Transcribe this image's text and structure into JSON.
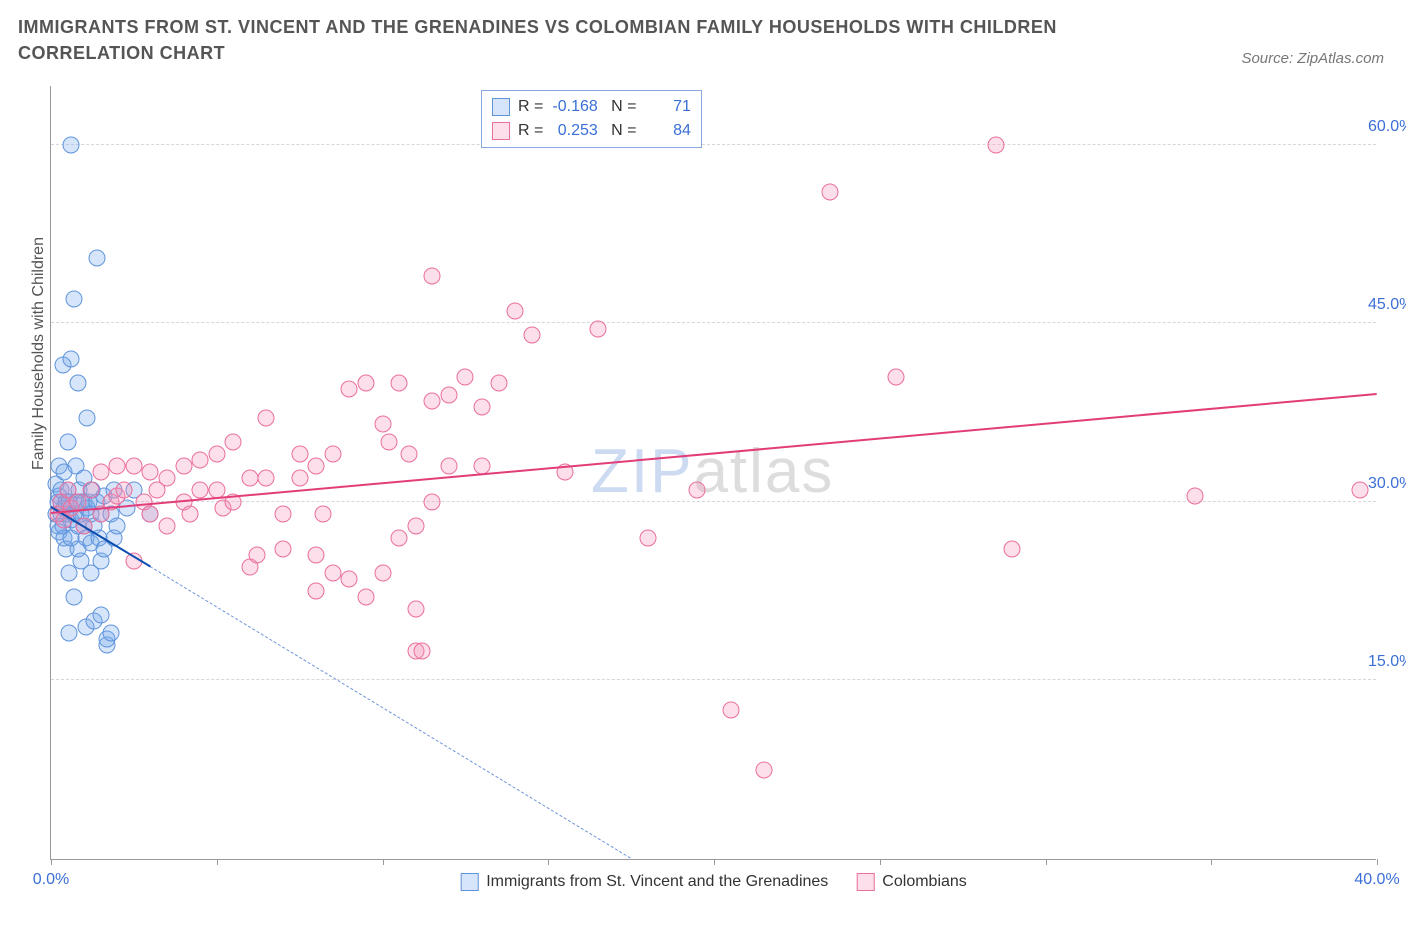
{
  "title": "IMMIGRANTS FROM ST. VINCENT AND THE GRENADINES VS COLOMBIAN FAMILY HOUSEHOLDS WITH CHILDREN CORRELATION CHART",
  "source_label": "Source: ZipAtlas.com",
  "watermark_a": "ZIP",
  "watermark_b": "atlas",
  "chart": {
    "type": "scatter",
    "xlim": [
      0,
      40
    ],
    "ylim": [
      0,
      65
    ],
    "x_tick_positions": [
      0,
      5,
      10,
      15,
      20,
      25,
      30,
      35,
      40
    ],
    "x_tick_labels": [
      "0.0%",
      "",
      "",
      "",
      "",
      "",
      "",
      "",
      "40.0%"
    ],
    "y_tick_positions": [
      15,
      30,
      45,
      60
    ],
    "y_tick_labels": [
      "15.0%",
      "30.0%",
      "45.0%",
      "60.0%"
    ],
    "ylabel": "Family Households with Children",
    "grid_color": "#d7d7d7",
    "axis_color": "#999999",
    "tick_label_color": "#3b6fd6",
    "background_color": "#ffffff",
    "marker_radius": 8.5,
    "marker_stroke_width": 1.5,
    "series": [
      {
        "name": "Immigrants from St. Vincent and the Grenadines",
        "fill": "rgba(120,170,235,0.30)",
        "stroke": "#5f94dc",
        "R": "-0.168",
        "N": "71",
        "trend": {
          "x1": 0,
          "y1": 29.5,
          "x2": 3.0,
          "y2": 24.5,
          "color": "#0b4db0",
          "width": 2.5,
          "dash": false
        },
        "trend_ext": {
          "x1": 3.0,
          "y1": 24.5,
          "x2": 17.5,
          "y2": 0,
          "color": "#6f95d9",
          "width": 1,
          "dash": true
        },
        "points": [
          [
            0.15,
            29.0
          ],
          [
            0.15,
            31.5
          ],
          [
            0.2,
            28.0
          ],
          [
            0.2,
            30.0
          ],
          [
            0.25,
            30.5
          ],
          [
            0.25,
            27.5
          ],
          [
            0.25,
            33.0
          ],
          [
            0.3,
            29.0
          ],
          [
            0.3,
            30.0
          ],
          [
            0.3,
            31.0
          ],
          [
            0.35,
            28.0
          ],
          [
            0.35,
            41.5
          ],
          [
            0.4,
            27.0
          ],
          [
            0.4,
            29.5
          ],
          [
            0.4,
            32.5
          ],
          [
            0.45,
            26.0
          ],
          [
            0.45,
            30.0
          ],
          [
            0.5,
            29.0
          ],
          [
            0.5,
            31.0
          ],
          [
            0.5,
            35.0
          ],
          [
            0.55,
            19.0
          ],
          [
            0.55,
            24.0
          ],
          [
            0.55,
            30.0
          ],
          [
            0.6,
            27.0
          ],
          [
            0.6,
            28.5
          ],
          [
            0.6,
            42.0
          ],
          [
            0.6,
            60.0
          ],
          [
            0.7,
            22.0
          ],
          [
            0.7,
            29.0
          ],
          [
            0.7,
            47.0
          ],
          [
            0.75,
            30.0
          ],
          [
            0.75,
            33.0
          ],
          [
            0.8,
            26.0
          ],
          [
            0.8,
            28.0
          ],
          [
            0.8,
            40.0
          ],
          [
            0.85,
            31.0
          ],
          [
            0.9,
            25.0
          ],
          [
            0.9,
            29.0
          ],
          [
            0.9,
            30.0
          ],
          [
            1.0,
            28.0
          ],
          [
            1.0,
            30.0
          ],
          [
            1.0,
            32.0
          ],
          [
            1.05,
            19.5
          ],
          [
            1.05,
            27.0
          ],
          [
            1.1,
            29.5
          ],
          [
            1.1,
            37.0
          ],
          [
            1.15,
            30.0
          ],
          [
            1.2,
            24.0
          ],
          [
            1.2,
            26.5
          ],
          [
            1.2,
            29.0
          ],
          [
            1.25,
            31.0
          ],
          [
            1.3,
            20.0
          ],
          [
            1.3,
            28.0
          ],
          [
            1.4,
            30.0
          ],
          [
            1.4,
            50.5
          ],
          [
            1.45,
            27.0
          ],
          [
            1.5,
            20.5
          ],
          [
            1.5,
            25.0
          ],
          [
            1.5,
            29.0
          ],
          [
            1.6,
            26.0
          ],
          [
            1.6,
            30.5
          ],
          [
            1.7,
            18.0
          ],
          [
            1.7,
            18.5
          ],
          [
            1.8,
            19.0
          ],
          [
            1.8,
            29.0
          ],
          [
            1.9,
            27.0
          ],
          [
            1.9,
            31.0
          ],
          [
            2.0,
            28.0
          ],
          [
            2.3,
            29.5
          ],
          [
            2.5,
            31.0
          ],
          [
            3.0,
            29.0
          ]
        ]
      },
      {
        "name": "Colombians",
        "fill": "rgba(245,150,185,0.30)",
        "stroke": "#ea6f9b",
        "R": "0.253",
        "N": "84",
        "trend": {
          "x1": 0,
          "y1": 29.0,
          "x2": 40,
          "y2": 39.0,
          "color": "#e23d78",
          "width": 2.5,
          "dash": false
        },
        "points": [
          [
            0.2,
            29.0
          ],
          [
            0.3,
            30.0
          ],
          [
            0.4,
            28.5
          ],
          [
            0.5,
            31.0
          ],
          [
            0.6,
            29.5
          ],
          [
            0.8,
            30.0
          ],
          [
            1.0,
            28.0
          ],
          [
            1.2,
            31.0
          ],
          [
            1.5,
            29.0
          ],
          [
            1.5,
            32.5
          ],
          [
            1.8,
            30.0
          ],
          [
            2.0,
            30.5
          ],
          [
            2.0,
            33.0
          ],
          [
            2.2,
            31.0
          ],
          [
            2.5,
            25.0
          ],
          [
            2.5,
            33.0
          ],
          [
            2.8,
            30.0
          ],
          [
            3.0,
            29.0
          ],
          [
            3.0,
            32.5
          ],
          [
            3.2,
            31.0
          ],
          [
            3.5,
            28.0
          ],
          [
            3.5,
            32.0
          ],
          [
            4.0,
            30.0
          ],
          [
            4.0,
            33.0
          ],
          [
            4.2,
            29.0
          ],
          [
            4.5,
            31.0
          ],
          [
            4.5,
            33.5
          ],
          [
            5.0,
            31.0
          ],
          [
            5.0,
            34.0
          ],
          [
            5.2,
            29.5
          ],
          [
            5.5,
            30.0
          ],
          [
            5.5,
            35.0
          ],
          [
            6.0,
            24.5
          ],
          [
            6.0,
            32.0
          ],
          [
            6.2,
            25.5
          ],
          [
            6.5,
            32.0
          ],
          [
            6.5,
            37.0
          ],
          [
            7.0,
            26.0
          ],
          [
            7.0,
            29.0
          ],
          [
            7.5,
            32.0
          ],
          [
            7.5,
            34.0
          ],
          [
            8.0,
            22.5
          ],
          [
            8.0,
            25.5
          ],
          [
            8.0,
            33.0
          ],
          [
            8.2,
            29.0
          ],
          [
            8.5,
            24.0
          ],
          [
            8.5,
            34.0
          ],
          [
            9.0,
            23.5
          ],
          [
            9.0,
            39.5
          ],
          [
            9.5,
            22.0
          ],
          [
            9.5,
            40.0
          ],
          [
            10.0,
            24.0
          ],
          [
            10.0,
            36.5
          ],
          [
            10.2,
            35.0
          ],
          [
            10.5,
            27.0
          ],
          [
            10.5,
            40.0
          ],
          [
            10.8,
            34.0
          ],
          [
            11.0,
            17.5
          ],
          [
            11.0,
            21.0
          ],
          [
            11.0,
            28.0
          ],
          [
            11.2,
            17.5
          ],
          [
            11.5,
            30.0
          ],
          [
            11.5,
            38.5
          ],
          [
            11.5,
            49.0
          ],
          [
            12.0,
            33.0
          ],
          [
            12.0,
            39.0
          ],
          [
            12.5,
            40.5
          ],
          [
            13.0,
            33.0
          ],
          [
            13.0,
            38.0
          ],
          [
            13.5,
            40.0
          ],
          [
            14.0,
            46.0
          ],
          [
            14.5,
            44.0
          ],
          [
            15.5,
            32.5
          ],
          [
            16.5,
            44.5
          ],
          [
            18.0,
            27.0
          ],
          [
            19.5,
            31.0
          ],
          [
            20.5,
            12.5
          ],
          [
            21.5,
            7.5
          ],
          [
            23.5,
            56.0
          ],
          [
            25.5,
            40.5
          ],
          [
            28.5,
            60.0
          ],
          [
            29.0,
            26.0
          ],
          [
            34.5,
            30.5
          ],
          [
            39.5,
            31.0
          ]
        ]
      }
    ],
    "legend_bottom": [
      {
        "label": "Immigrants from St. Vincent and the Grenadines",
        "fill": "rgba(120,170,235,0.30)",
        "stroke": "#5f94dc"
      },
      {
        "label": "Colombians",
        "fill": "rgba(245,150,185,0.30)",
        "stroke": "#ea6f9b"
      }
    ]
  }
}
